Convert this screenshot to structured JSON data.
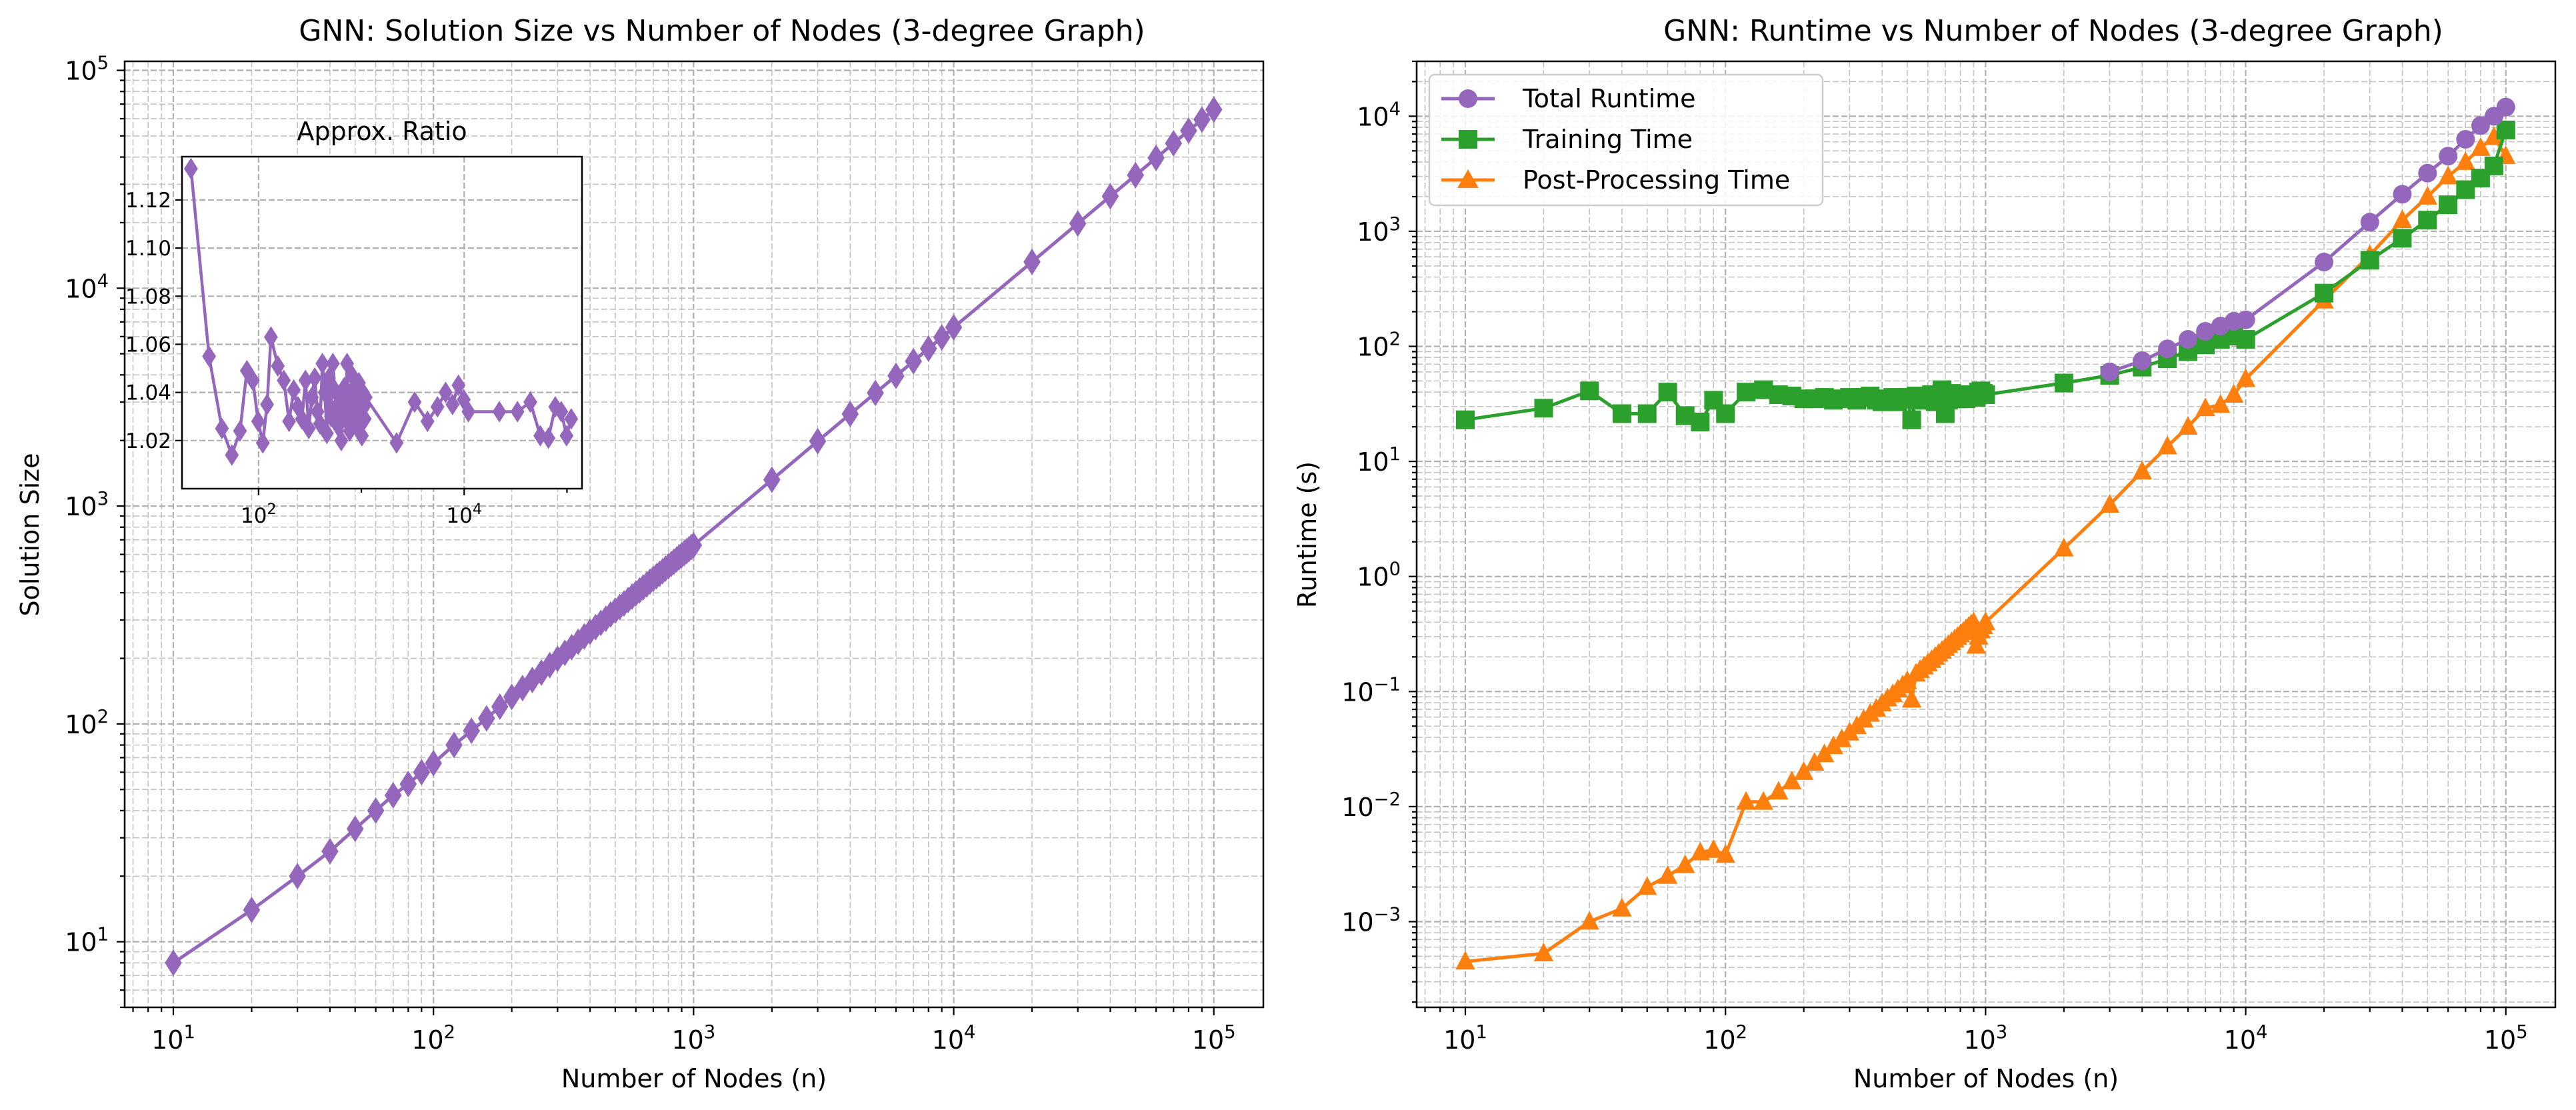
{
  "chart_data": [
    {
      "type": "line",
      "title": "GNN: Solution Size vs Number of Nodes (3-degree Graph)",
      "xlabel": "Number of Nodes (n)",
      "ylabel": "Solution Size",
      "xscale": "log",
      "yscale": "log",
      "xlim": [
        6.5,
        155000
      ],
      "ylim": [
        5,
        110000
      ],
      "grid": true,
      "x_tick_labels": [
        {
          "base": "10",
          "exp": "1"
        },
        {
          "base": "10",
          "exp": "2"
        },
        {
          "base": "10",
          "exp": "3"
        },
        {
          "base": "10",
          "exp": "4"
        },
        {
          "base": "10",
          "exp": "5"
        }
      ],
      "y_tick_labels": [
        {
          "base": "10",
          "exp": "1"
        },
        {
          "base": "10",
          "exp": "2"
        },
        {
          "base": "10",
          "exp": "3"
        },
        {
          "base": "10",
          "exp": "4"
        },
        {
          "base": "10",
          "exp": "5"
        }
      ],
      "series": [
        {
          "color": "#9467bd",
          "marker": "diamond",
          "x": [
            10,
            20,
            30,
            40,
            50,
            60,
            70,
            80,
            90,
            100,
            120,
            140,
            160,
            180,
            200,
            220,
            240,
            260,
            280,
            300,
            320,
            340,
            360,
            380,
            400,
            420,
            440,
            460,
            480,
            500,
            520,
            540,
            560,
            580,
            600,
            620,
            640,
            660,
            680,
            700,
            720,
            740,
            760,
            780,
            800,
            820,
            840,
            860,
            880,
            900,
            920,
            940,
            960,
            980,
            1000,
            2000,
            3000,
            4000,
            5000,
            6000,
            7000,
            8000,
            9000,
            10000,
            20000,
            30000,
            40000,
            50000,
            60000,
            70000,
            80000,
            90000,
            100000
          ],
          "y": [
            8,
            14,
            20,
            26,
            33,
            40,
            47,
            53,
            60,
            66,
            80,
            93,
            106,
            120,
            133,
            146,
            159,
            172,
            186,
            199,
            212,
            225,
            238,
            252,
            265,
            278,
            291,
            304,
            318,
            331,
            344,
            357,
            370,
            384,
            397,
            410,
            423,
            436,
            450,
            463,
            476,
            489,
            502,
            516,
            529,
            542,
            555,
            568,
            582,
            595,
            608,
            621,
            634,
            648,
            661,
            1320,
            1985,
            2645,
            3305,
            3960,
            4620,
            5280,
            5945,
            6610,
            13200,
            19820,
            26420,
            33020,
            39630,
            46230,
            52850,
            59440,
            66050
          ]
        }
      ],
      "inset": {
        "type": "line",
        "title": "Approx. Ratio",
        "xscale": "log",
        "xlim": [
          18,
          140000
        ],
        "ylim": [
          1.0,
          1.138
        ],
        "x_tick_labels": [
          {
            "base": "10",
            "exp": "2"
          },
          {
            "base": "10",
            "exp": "4"
          }
        ],
        "y_tick_labels": [
          "1.02",
          "1.04",
          "1.06",
          "1.08",
          "1.10",
          "1.12"
        ],
        "y_ticks": [
          1.02,
          1.04,
          1.06,
          1.08,
          1.1,
          1.12
        ],
        "series": [
          {
            "color": "#9467bd",
            "marker": "diamond",
            "x": [
              22,
              33,
              44,
              55,
              66,
              77,
              88,
              99,
              110,
              121,
              132,
              154,
              176,
              198,
              220,
              242,
              264,
              286,
              308,
              330,
              352,
              374,
              396,
              418,
              440,
              462,
              484,
              506,
              528,
              550,
              572,
              594,
              616,
              638,
              660,
              682,
              704,
              726,
              748,
              770,
              792,
              814,
              836,
              858,
              880,
              902,
              924,
              946,
              968,
              990,
              1012,
              1034,
              1056,
              1078,
              1100,
              2200,
              3300,
              4400,
              5500,
              6600,
              7700,
              8800,
              9900,
              11000,
              22000,
              33000,
              44000,
              55000,
              66000,
              77000,
              88000,
              99000,
              110000
            ],
            "y": [
              1.133,
              1.055,
              1.025,
              1.014,
              1.024,
              1.049,
              1.045,
              1.028,
              1.019,
              1.035,
              1.063,
              1.051,
              1.045,
              1.028,
              1.041,
              1.034,
              1.029,
              1.045,
              1.025,
              1.038,
              1.046,
              1.032,
              1.027,
              1.052,
              1.04,
              1.023,
              1.046,
              1.03,
              1.052,
              1.041,
              1.034,
              1.026,
              1.038,
              1.02,
              1.031,
              1.042,
              1.029,
              1.052,
              1.035,
              1.024,
              1.04,
              1.047,
              1.031,
              1.027,
              1.043,
              1.036,
              1.025,
              1.044,
              1.032,
              1.028,
              1.022,
              1.04,
              1.034,
              1.029,
              1.038,
              1.019,
              1.036,
              1.028,
              1.034,
              1.04,
              1.035,
              1.043,
              1.037,
              1.032,
              1.032,
              1.032,
              1.036,
              1.022,
              1.021,
              1.034,
              1.032,
              1.022,
              1.029
            ]
          }
        ]
      }
    },
    {
      "type": "line",
      "title": "GNN: Runtime vs Number of Nodes (3-degree Graph)",
      "xlabel": "Number of Nodes (n)",
      "ylabel": "Runtime (s)",
      "xscale": "log",
      "yscale": "log",
      "xlim": [
        6.5,
        155000
      ],
      "ylim": [
        0.00018,
        30000
      ],
      "grid": true,
      "legend": "upper left",
      "x_tick_labels": [
        {
          "base": "10",
          "exp": "1"
        },
        {
          "base": "10",
          "exp": "2"
        },
        {
          "base": "10",
          "exp": "3"
        },
        {
          "base": "10",
          "exp": "4"
        },
        {
          "base": "10",
          "exp": "5"
        }
      ],
      "y_tick_labels": [
        {
          "base": "10",
          "exp": "−3"
        },
        {
          "base": "10",
          "exp": "−2"
        },
        {
          "base": "10",
          "exp": "−1"
        },
        {
          "base": "10",
          "exp": "0"
        },
        {
          "base": "10",
          "exp": "1"
        },
        {
          "base": "10",
          "exp": "2"
        },
        {
          "base": "10",
          "exp": "3"
        },
        {
          "base": "10",
          "exp": "4"
        }
      ],
      "series": [
        {
          "name": "Total Runtime",
          "color": "#9467bd",
          "marker": "circle",
          "x": [
            3000,
            4000,
            5000,
            6000,
            7000,
            8000,
            9000,
            10000,
            20000,
            30000,
            40000,
            50000,
            60000,
            70000,
            80000,
            90000,
            100000
          ],
          "y": [
            60,
            75,
            95,
            115,
            135,
            150,
            165,
            170,
            540,
            1200,
            2100,
            3200,
            4500,
            6300,
            8300,
            10000,
            12000
          ]
        },
        {
          "name": "Training Time",
          "color": "#2ca02c",
          "marker": "square",
          "x": [
            10,
            20,
            30,
            40,
            50,
            60,
            70,
            80,
            90,
            100,
            120,
            140,
            160,
            180,
            200,
            220,
            240,
            260,
            280,
            300,
            320,
            340,
            360,
            380,
            400,
            420,
            440,
            460,
            480,
            500,
            520,
            540,
            560,
            580,
            600,
            620,
            640,
            660,
            680,
            700,
            720,
            740,
            760,
            780,
            800,
            820,
            840,
            860,
            880,
            900,
            920,
            940,
            960,
            980,
            1000,
            2000,
            3000,
            4000,
            5000,
            6000,
            7000,
            8000,
            9000,
            10000,
            20000,
            30000,
            40000,
            50000,
            60000,
            70000,
            80000,
            90000,
            100000
          ],
          "y": [
            23,
            29,
            41,
            26,
            26,
            40,
            25,
            22,
            34,
            26,
            40,
            42,
            38,
            37,
            35,
            35,
            36,
            34,
            35,
            36,
            34,
            36,
            37,
            34,
            33,
            35,
            36,
            33,
            35,
            36,
            23,
            37,
            34,
            36,
            35,
            38,
            33,
            36,
            42,
            26,
            34,
            39,
            37,
            35,
            38,
            36,
            35,
            38,
            37,
            38,
            36,
            40,
            41,
            39,
            38,
            48,
            56,
            66,
            78,
            90,
            103,
            115,
            123,
            115,
            290,
            560,
            870,
            1250,
            1700,
            2300,
            2900,
            3700,
            7600
          ]
        },
        {
          "name": "Post-Processing Time",
          "color": "#ff7f0e",
          "marker": "triangle",
          "x": [
            10,
            20,
            30,
            40,
            50,
            60,
            70,
            80,
            90,
            100,
            120,
            140,
            160,
            180,
            200,
            220,
            240,
            260,
            280,
            300,
            320,
            340,
            360,
            380,
            400,
            420,
            440,
            460,
            480,
            500,
            520,
            540,
            560,
            580,
            600,
            620,
            640,
            660,
            680,
            700,
            720,
            740,
            760,
            780,
            800,
            820,
            840,
            860,
            880,
            900,
            920,
            940,
            960,
            980,
            1000,
            2000,
            3000,
            4000,
            5000,
            6000,
            7000,
            8000,
            9000,
            10000,
            20000,
            30000,
            40000,
            50000,
            60000,
            70000,
            80000,
            90000,
            100000
          ],
          "y": [
            0.00045,
            0.00053,
            0.001,
            0.0013,
            0.002,
            0.0025,
            0.0031,
            0.004,
            0.0042,
            0.0038,
            0.011,
            0.011,
            0.0135,
            0.0165,
            0.02,
            0.024,
            0.0285,
            0.0335,
            0.0385,
            0.044,
            0.05,
            0.057,
            0.064,
            0.071,
            0.079,
            0.087,
            0.095,
            0.104,
            0.113,
            0.123,
            0.085,
            0.143,
            0.154,
            0.165,
            0.176,
            0.188,
            0.2,
            0.213,
            0.226,
            0.24,
            0.254,
            0.268,
            0.283,
            0.298,
            0.314,
            0.33,
            0.347,
            0.364,
            0.381,
            0.399,
            0.25,
            0.3,
            0.34,
            0.37,
            0.4,
            1.75,
            4.2,
            8.2,
            13.5,
            20,
            29,
            31,
            38,
            52,
            250,
            620,
            1250,
            2000,
            3000,
            4000,
            5300,
            6600,
            4500
          ]
        }
      ]
    }
  ]
}
